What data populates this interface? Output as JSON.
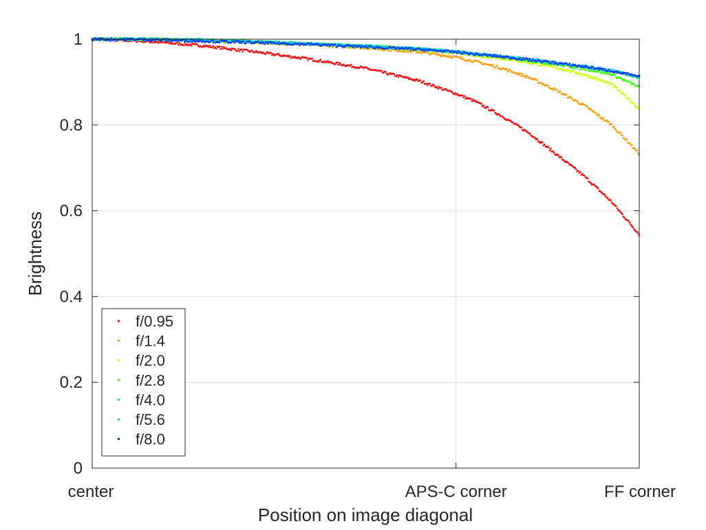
{
  "chart_data": {
    "type": "scatter",
    "xlabel": "Position on image diagonal",
    "ylabel": "Brightness",
    "xlim": [
      0,
      1
    ],
    "ylim": [
      0,
      1
    ],
    "grid": true,
    "legend_position": "bottom-left",
    "x_ticks": [
      {
        "value": 0,
        "label": "center"
      },
      {
        "value": 0.665,
        "label": "APS-C corner"
      },
      {
        "value": 1,
        "label": "FF corner"
      }
    ],
    "y_ticks": [
      {
        "value": 0,
        "label": "0"
      },
      {
        "value": 0.2,
        "label": "0.2"
      },
      {
        "value": 0.4,
        "label": "0.4"
      },
      {
        "value": 0.6,
        "label": "0.6"
      },
      {
        "value": 0.8,
        "label": "0.8"
      },
      {
        "value": 1,
        "label": "1"
      }
    ],
    "x": [
      0,
      0.1,
      0.2,
      0.3,
      0.4,
      0.5,
      0.6,
      0.665,
      0.7,
      0.75,
      0.8,
      0.85,
      0.9,
      0.95,
      1.0
    ],
    "series": [
      {
        "name": "f/0.95",
        "color": "#ff0000",
        "values": [
          1.0,
          0.995,
          0.985,
          0.97,
          0.953,
          0.932,
          0.902,
          0.873,
          0.855,
          0.82,
          0.78,
          0.73,
          0.68,
          0.62,
          0.545
        ]
      },
      {
        "name": "f/1.4",
        "color": "#ff9900",
        "values": [
          1.0,
          0.999,
          0.996,
          0.992,
          0.987,
          0.98,
          0.97,
          0.958,
          0.948,
          0.932,
          0.91,
          0.88,
          0.845,
          0.8,
          0.733
        ]
      },
      {
        "name": "f/2.0",
        "color": "#ccff00",
        "values": [
          1.0,
          1.0,
          0.997,
          0.993,
          0.988,
          0.982,
          0.975,
          0.968,
          0.962,
          0.955,
          0.945,
          0.933,
          0.917,
          0.895,
          0.838
        ]
      },
      {
        "name": "f/2.8",
        "color": "#33ff00",
        "values": [
          1.0,
          1.0,
          0.998,
          0.994,
          0.989,
          0.984,
          0.977,
          0.97,
          0.965,
          0.958,
          0.95,
          0.941,
          0.931,
          0.918,
          0.888
        ]
      },
      {
        "name": "f/4.0",
        "color": "#00ff66",
        "values": [
          1.0,
          1.0,
          0.998,
          0.994,
          0.989,
          0.984,
          0.977,
          0.971,
          0.966,
          0.96,
          0.952,
          0.944,
          0.936,
          0.926,
          0.91
        ]
      },
      {
        "name": "f/5.6",
        "color": "#00ccff",
        "values": [
          1.0,
          1.0,
          0.998,
          0.994,
          0.989,
          0.984,
          0.977,
          0.971,
          0.966,
          0.96,
          0.953,
          0.945,
          0.937,
          0.927,
          0.912
        ]
      },
      {
        "name": "f/8.0",
        "color": "#0033ff",
        "values": [
          1.0,
          0.999,
          0.996,
          0.992,
          0.988,
          0.982,
          0.976,
          0.97,
          0.965,
          0.959,
          0.952,
          0.944,
          0.936,
          0.926,
          0.912
        ]
      }
    ]
  }
}
